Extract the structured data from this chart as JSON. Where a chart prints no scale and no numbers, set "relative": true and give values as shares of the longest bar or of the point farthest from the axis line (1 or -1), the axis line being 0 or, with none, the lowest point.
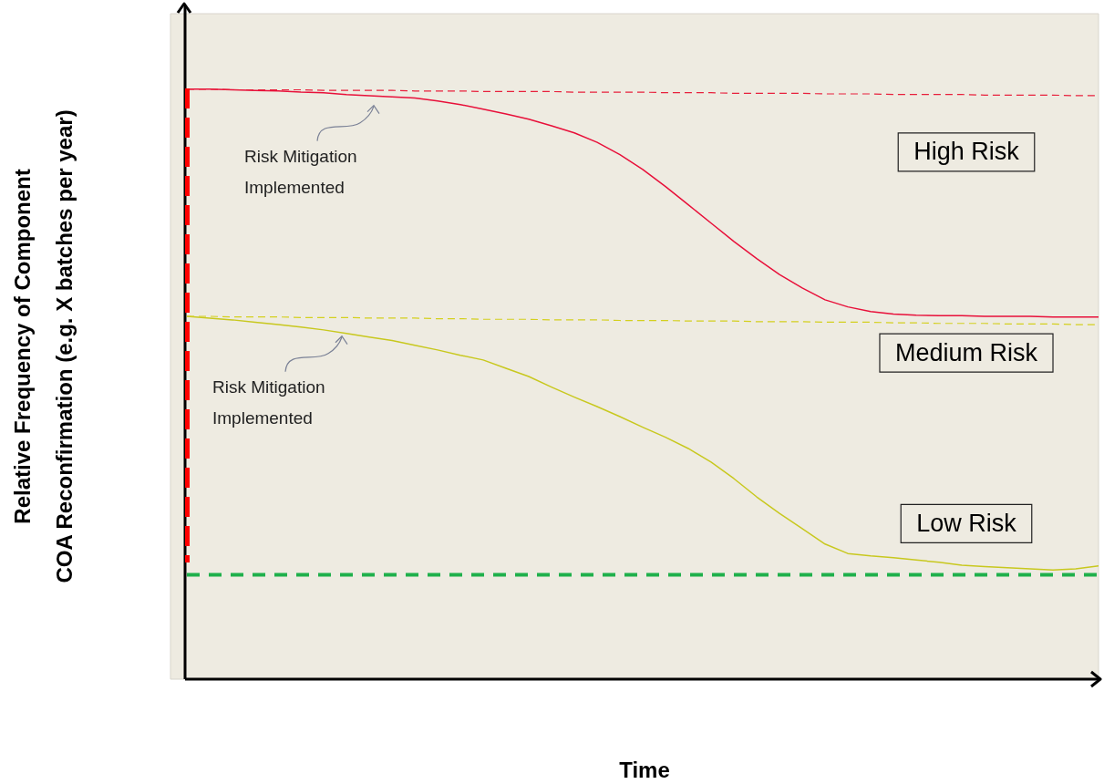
{
  "chart_data": {
    "type": "line",
    "relative": true,
    "xlabel": "Time",
    "ylabel": "Relative Frequency of Component\nCOA Reconfirmation (e.g. X batches per year)",
    "categories": [
      null,
      null,
      null,
      null,
      null,
      null,
      null,
      null,
      null,
      null,
      null,
      null,
      null,
      null,
      null,
      null,
      null,
      null,
      null,
      null,
      null,
      null,
      null,
      null,
      null,
      null,
      null,
      null,
      null,
      null,
      null,
      null,
      null,
      null,
      null,
      null,
      null,
      null,
      null,
      null,
      null
    ],
    "series": [
      {
        "name": "High Risk",
        "color": "#e8203c",
        "line_style": "dashed",
        "values": [
          1.0,
          1.0,
          0.999,
          0.999,
          0.999,
          0.999,
          0.998,
          0.998,
          0.998,
          0.998,
          0.997,
          0.997,
          0.997,
          0.996,
          0.996,
          0.996,
          0.996,
          0.995,
          0.995,
          0.995,
          0.995,
          0.994,
          0.994,
          0.994,
          0.993,
          0.993,
          0.993,
          0.993,
          0.992,
          0.992,
          0.992,
          0.991,
          0.991,
          0.991,
          0.991,
          0.99,
          0.99,
          0.99,
          0.99,
          0.989,
          0.989
        ]
      },
      {
        "color": "#e8103a",
        "values": [
          1.0,
          1.0,
          0.999,
          0.998,
          0.997,
          0.995,
          0.994,
          0.991,
          0.989,
          0.987,
          0.985,
          0.98,
          0.974,
          0.966,
          0.958,
          0.949,
          0.938,
          0.926,
          0.91,
          0.889,
          0.864,
          0.835,
          0.804,
          0.773,
          0.742,
          0.713,
          0.686,
          0.663,
          0.643,
          0.631,
          0.623,
          0.619,
          0.617,
          0.616,
          0.616,
          0.615,
          0.615,
          0.615,
          0.614,
          0.614,
          0.614
        ]
      },
      {
        "name": "Medium Risk",
        "color": "#d4d01e",
        "line_style": "dashed",
        "values": [
          0.615,
          0.615,
          0.614,
          0.614,
          0.614,
          0.613,
          0.613,
          0.613,
          0.612,
          0.612,
          0.612,
          0.611,
          0.611,
          0.61,
          0.61,
          0.61,
          0.609,
          0.609,
          0.609,
          0.608,
          0.608,
          0.608,
          0.607,
          0.607,
          0.607,
          0.606,
          0.606,
          0.606,
          0.605,
          0.605,
          0.605,
          0.604,
          0.604,
          0.603,
          0.603,
          0.603,
          0.602,
          0.602,
          0.602,
          0.601,
          0.601
        ]
      },
      {
        "color": "#c8c81e",
        "values": [
          0.615,
          0.612,
          0.609,
          0.605,
          0.601,
          0.597,
          0.592,
          0.586,
          0.58,
          0.574,
          0.566,
          0.558,
          0.549,
          0.541,
          0.527,
          0.513,
          0.495,
          0.478,
          0.462,
          0.445,
          0.427,
          0.41,
          0.391,
          0.368,
          0.34,
          0.309,
          0.281,
          0.255,
          0.229,
          0.213,
          0.209,
          0.206,
          0.202,
          0.198,
          0.193,
          0.191,
          0.189,
          0.187,
          0.185,
          0.187,
          0.192
        ]
      },
      {
        "name": "Low Risk",
        "color": "#1fb04b",
        "line_style": "dashed",
        "values": [
          0.177,
          0.177,
          0.177,
          0.177,
          0.177,
          0.177,
          0.177,
          0.177,
          0.177,
          0.177,
          0.177,
          0.177,
          0.177,
          0.177,
          0.177,
          0.177,
          0.177,
          0.177,
          0.177,
          0.177,
          0.177,
          0.177,
          0.177,
          0.177,
          0.177,
          0.177,
          0.177,
          0.177,
          0.177,
          0.177,
          0.177,
          0.177,
          0.177,
          0.177,
          0.177,
          0.177,
          0.177,
          0.177,
          0.177,
          0.177,
          0.177
        ]
      }
    ],
    "annotations": [
      "Risk Mitigation\nImplemented",
      "Risk Mitigation\nImplemented"
    ]
  }
}
